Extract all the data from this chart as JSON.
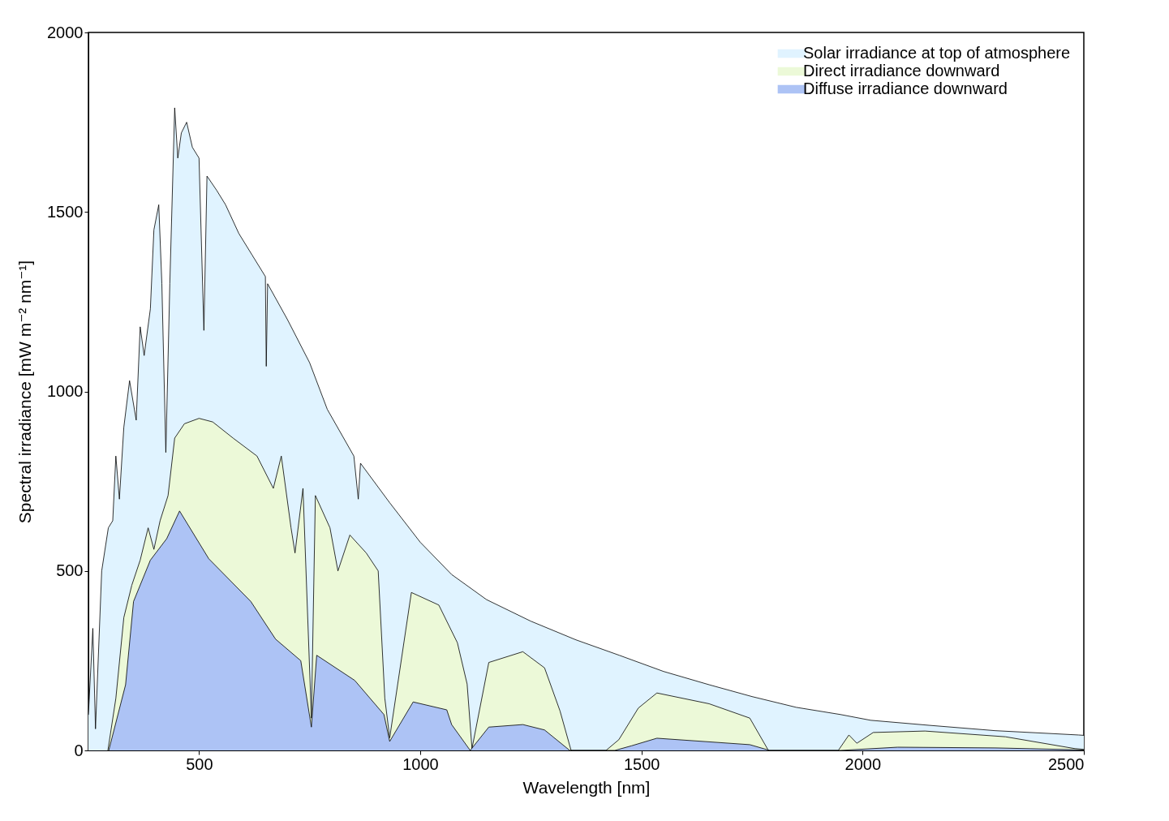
{
  "chart_data": {
    "type": "area",
    "xlabel": "Wavelength [nm]",
    "ylabel": "Spectral irradiance [mW m⁻² nm⁻¹]",
    "xlim": [
      250,
      2500
    ],
    "ylim": [
      0,
      2000
    ],
    "xticks": [
      500,
      1000,
      1500,
      2000,
      2500
    ],
    "yticks": [
      0,
      500,
      1000,
      1500,
      2000
    ],
    "legend": "top right",
    "series": [
      {
        "name": "Solar irradiance at top of atmosphere",
        "color": "#e0f3ff",
        "x": [
          250,
          260,
          266,
          280,
          295,
          305,
          312,
          320,
          330,
          343,
          358,
          367,
          376,
          390,
          398,
          409,
          416,
          425,
          434,
          445,
          452,
          460,
          472,
          485,
          500,
          511,
          518,
          540,
          560,
          590,
          620,
          650,
          652,
          655,
          700,
          750,
          790,
          850,
          860,
          865,
          931,
          1000,
          1071,
          1150,
          1250,
          1352,
          1450,
          1550,
          1653,
          1750,
          1850,
          1950,
          2018,
          2150,
          2300,
          2488,
          2500
        ],
        "values": [
          100,
          340,
          60,
          500,
          620,
          640,
          820,
          700,
          900,
          1030,
          920,
          1180,
          1100,
          1230,
          1450,
          1520,
          1300,
          830,
          1300,
          1790,
          1650,
          1720,
          1750,
          1680,
          1650,
          1170,
          1600,
          1560,
          1520,
          1440,
          1380,
          1320,
          1070,
          1300,
          1200,
          1080,
          950,
          820,
          700,
          800,
          690,
          580,
          490,
          420,
          360,
          308,
          265,
          220,
          183,
          150,
          120,
          100,
          84,
          70,
          55,
          43,
          42
        ]
      },
      {
        "name": "Direct irradiance downward",
        "color": "#ecf9d8",
        "x": [
          294,
          312,
          330,
          348,
          367,
          385,
          398,
          412,
          430,
          445,
          467,
          500,
          531,
          577,
          631,
          668,
          686,
          708,
          717,
          735,
          754,
          763,
          796,
          814,
          841,
          878,
          905,
          920,
          931,
          980,
          1042,
          1084,
          1106,
          1117,
          1155,
          1232,
          1281,
          1316,
          1341,
          1420,
          1449,
          1493,
          1535,
          1653,
          1745,
          1787,
          1945,
          1969,
          1987,
          2024,
          2141,
          2323,
          2480,
          2500
        ],
        "values": [
          0,
          145,
          370,
          460,
          530,
          620,
          560,
          640,
          710,
          870,
          910,
          925,
          915,
          870,
          820,
          730,
          820,
          620,
          550,
          730,
          90,
          710,
          620,
          500,
          600,
          550,
          500,
          145,
          35,
          440,
          405,
          300,
          185,
          5,
          245,
          275,
          230,
          110,
          0,
          0,
          30,
          118,
          160,
          130,
          90,
          0,
          0,
          43,
          20,
          50,
          54,
          38,
          5,
          3
        ]
      },
      {
        "name": "Diffuse irradiance downward",
        "color": "#adc3f5",
        "x": [
          296,
          334,
          352,
          390,
          427,
          456,
          522,
          617,
          673,
          730,
          754,
          766,
          852,
          918,
          931,
          984,
          1060,
          1071,
          1113,
          1155,
          1232,
          1281,
          1338,
          1440,
          1478,
          1535,
          1745,
          1790,
          1950,
          2079,
          2300,
          2480,
          2500
        ],
        "values": [
          0,
          183,
          415,
          530,
          590,
          667,
          534,
          415,
          310,
          250,
          65,
          265,
          195,
          100,
          25,
          135,
          113,
          72,
          0,
          65,
          72,
          57,
          0,
          0,
          13,
          34,
          16,
          0,
          0,
          9,
          7,
          2,
          1
        ]
      }
    ]
  }
}
